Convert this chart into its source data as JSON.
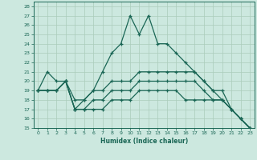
{
  "title": "",
  "xlabel": "Humidex (Indice chaleur)",
  "background_color": "#cce8df",
  "grid_color": "#aaccbb",
  "line_color": "#1a6655",
  "xlim": [
    -0.5,
    23.5
  ],
  "ylim": [
    15,
    28.5
  ],
  "yticks": [
    15,
    16,
    17,
    18,
    19,
    20,
    21,
    22,
    23,
    24,
    25,
    26,
    27,
    28
  ],
  "xticks": [
    0,
    1,
    2,
    3,
    4,
    5,
    6,
    7,
    8,
    9,
    10,
    11,
    12,
    13,
    14,
    15,
    16,
    17,
    18,
    19,
    20,
    21,
    22,
    23
  ],
  "series": [
    {
      "x": [
        0,
        1,
        2,
        3,
        4,
        5,
        6,
        7,
        8,
        9,
        10,
        11,
        12,
        13,
        14,
        15,
        16,
        17,
        18,
        19,
        20,
        21,
        22,
        23
      ],
      "y": [
        19,
        21,
        20,
        20,
        17,
        18,
        19,
        21,
        23,
        24,
        27,
        25,
        27,
        24,
        24,
        23,
        22,
        21,
        20,
        19,
        19,
        17,
        16,
        15
      ]
    },
    {
      "x": [
        0,
        1,
        2,
        3,
        4,
        5,
        6,
        7,
        8,
        9,
        10,
        11,
        12,
        13,
        14,
        15,
        16,
        17,
        18,
        19,
        20,
        21,
        22,
        23
      ],
      "y": [
        19,
        19,
        19,
        20,
        18,
        18,
        19,
        19,
        20,
        20,
        20,
        21,
        21,
        21,
        21,
        21,
        21,
        21,
        20,
        19,
        18,
        17,
        16,
        15
      ]
    },
    {
      "x": [
        0,
        1,
        2,
        3,
        4,
        5,
        6,
        7,
        8,
        9,
        10,
        11,
        12,
        13,
        14,
        15,
        16,
        17,
        18,
        19,
        20,
        21,
        22,
        23
      ],
      "y": [
        19,
        19,
        19,
        20,
        17,
        17,
        18,
        18,
        19,
        19,
        19,
        20,
        20,
        20,
        20,
        20,
        20,
        20,
        19,
        18,
        18,
        17,
        16,
        15
      ]
    },
    {
      "x": [
        0,
        1,
        2,
        3,
        4,
        5,
        6,
        7,
        8,
        9,
        10,
        11,
        12,
        13,
        14,
        15,
        16,
        17,
        18,
        19,
        20,
        21,
        22,
        23
      ],
      "y": [
        19,
        19,
        19,
        20,
        17,
        17,
        17,
        17,
        18,
        18,
        18,
        19,
        19,
        19,
        19,
        19,
        18,
        18,
        18,
        18,
        18,
        17,
        16,
        15
      ]
    }
  ]
}
